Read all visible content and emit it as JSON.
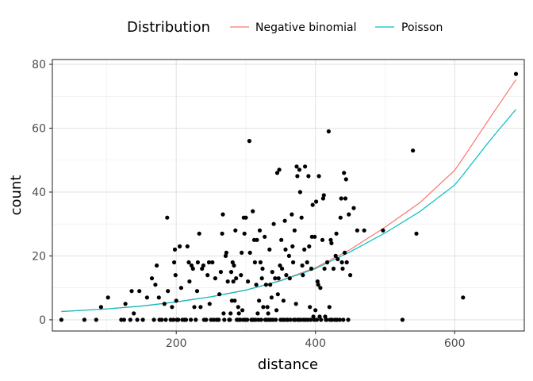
{
  "chart_data": {
    "type": "scatter",
    "xlabel": "distance",
    "ylabel": "count",
    "xlim": [
      22,
      700
    ],
    "ylim": [
      -3.5,
      81.5
    ],
    "x_ticks": [
      200,
      400,
      600
    ],
    "y_ticks": [
      0,
      20,
      40,
      60,
      80
    ],
    "grid": true,
    "legend": {
      "title": "Distribution",
      "position": "top",
      "entries": [
        {
          "name": "Negative binomial",
          "color": "#F8766D"
        },
        {
          "name": "Poisson",
          "color": "#00BFC4"
        }
      ]
    },
    "points": [
      [
        35,
        0
      ],
      [
        68,
        0
      ],
      [
        85,
        0
      ],
      [
        92,
        4
      ],
      [
        102,
        7
      ],
      [
        121,
        0
      ],
      [
        125,
        0
      ],
      [
        127,
        5
      ],
      [
        134,
        0
      ],
      [
        136,
        9
      ],
      [
        139,
        2
      ],
      [
        144,
        0
      ],
      [
        147,
        9
      ],
      [
        152,
        0
      ],
      [
        158,
        7
      ],
      [
        165,
        13
      ],
      [
        168,
        0
      ],
      [
        170,
        11
      ],
      [
        172,
        17
      ],
      [
        175,
        7
      ],
      [
        176,
        0
      ],
      [
        179,
        0
      ],
      [
        183,
        5
      ],
      [
        185,
        0
      ],
      [
        187,
        32
      ],
      [
        188,
        9
      ],
      [
        192,
        0
      ],
      [
        194,
        4
      ],
      [
        196,
        0
      ],
      [
        197,
        18
      ],
      [
        198,
        22
      ],
      [
        199,
        14
      ],
      [
        200,
        6
      ],
      [
        201,
        0
      ],
      [
        203,
        0
      ],
      [
        205,
        23
      ],
      [
        207,
        10
      ],
      [
        209,
        0
      ],
      [
        212,
        0
      ],
      [
        214,
        0
      ],
      [
        216,
        23
      ],
      [
        218,
        18
      ],
      [
        219,
        12
      ],
      [
        221,
        0
      ],
      [
        222,
        17
      ],
      [
        224,
        16
      ],
      [
        226,
        4
      ],
      [
        228,
        0
      ],
      [
        230,
        9
      ],
      [
        231,
        18
      ],
      [
        233,
        27
      ],
      [
        235,
        4
      ],
      [
        237,
        16
      ],
      [
        239,
        17
      ],
      [
        240,
        0
      ],
      [
        243,
        0
      ],
      [
        245,
        14
      ],
      [
        247,
        18
      ],
      [
        248,
        5
      ],
      [
        250,
        0
      ],
      [
        252,
        18
      ],
      [
        254,
        0
      ],
      [
        256,
        13
      ],
      [
        258,
        0
      ],
      [
        261,
        0
      ],
      [
        262,
        8
      ],
      [
        264,
        15
      ],
      [
        266,
        27
      ],
      [
        267,
        33
      ],
      [
        268,
        2
      ],
      [
        269,
        0
      ],
      [
        271,
        20
      ],
      [
        272,
        21
      ],
      [
        274,
        12
      ],
      [
        276,
        0
      ],
      [
        277,
        0
      ],
      [
        278,
        2
      ],
      [
        279,
        15
      ],
      [
        280,
        6
      ],
      [
        281,
        18
      ],
      [
        282,
        12
      ],
      [
        283,
        17
      ],
      [
        284,
        6
      ],
      [
        285,
        28
      ],
      [
        286,
        13
      ],
      [
        287,
        0
      ],
      [
        288,
        0
      ],
      [
        289,
        4
      ],
      [
        290,
        2
      ],
      [
        291,
        0
      ],
      [
        292,
        0
      ],
      [
        293,
        14
      ],
      [
        294,
        21
      ],
      [
        295,
        3
      ],
      [
        296,
        0
      ],
      [
        297,
        32
      ],
      [
        298,
        27
      ],
      [
        299,
        0
      ],
      [
        300,
        32
      ],
      [
        302,
        0
      ],
      [
        303,
        12
      ],
      [
        305,
        56
      ],
      [
        306,
        21
      ],
      [
        308,
        0
      ],
      [
        309,
        0
      ],
      [
        310,
        34
      ],
      [
        311,
        0
      ],
      [
        312,
        25
      ],
      [
        313,
        18
      ],
      [
        314,
        0
      ],
      [
        315,
        11
      ],
      [
        316,
        25
      ],
      [
        317,
        2
      ],
      [
        318,
        0
      ],
      [
        319,
        6
      ],
      [
        320,
        28
      ],
      [
        321,
        18
      ],
      [
        322,
        0
      ],
      [
        323,
        13
      ],
      [
        324,
        16
      ],
      [
        325,
        4
      ],
      [
        327,
        26
      ],
      [
        328,
        0
      ],
      [
        329,
        11
      ],
      [
        330,
        0
      ],
      [
        331,
        4
      ],
      [
        332,
        2
      ],
      [
        333,
        0
      ],
      [
        334,
        22
      ],
      [
        335,
        11
      ],
      [
        336,
        0
      ],
      [
        337,
        7
      ],
      [
        338,
        15
      ],
      [
        339,
        0
      ],
      [
        340,
        30
      ],
      [
        342,
        13
      ],
      [
        343,
        0
      ],
      [
        344,
        3
      ],
      [
        345,
        46
      ],
      [
        346,
        8
      ],
      [
        347,
        13
      ],
      [
        348,
        47
      ],
      [
        349,
        17
      ],
      [
        350,
        0
      ],
      [
        351,
        25
      ],
      [
        352,
        16
      ],
      [
        353,
        0
      ],
      [
        354,
        6
      ],
      [
        355,
        0
      ],
      [
        356,
        31
      ],
      [
        357,
        22
      ],
      [
        358,
        14
      ],
      [
        359,
        0
      ],
      [
        360,
        0
      ],
      [
        362,
        20
      ],
      [
        363,
        13
      ],
      [
        364,
        0
      ],
      [
        366,
        33
      ],
      [
        367,
        23
      ],
      [
        368,
        18
      ],
      [
        369,
        0
      ],
      [
        370,
        28
      ],
      [
        371,
        0
      ],
      [
        372,
        5
      ],
      [
        373,
        48
      ],
      [
        374,
        45
      ],
      [
        375,
        0
      ],
      [
        376,
        0
      ],
      [
        377,
        47
      ],
      [
        378,
        40
      ],
      [
        379,
        0
      ],
      [
        380,
        32
      ],
      [
        381,
        17
      ],
      [
        382,
        14
      ],
      [
        383,
        0
      ],
      [
        384,
        22
      ],
      [
        385,
        48
      ],
      [
        386,
        0
      ],
      [
        388,
        18
      ],
      [
        389,
        0
      ],
      [
        390,
        45
      ],
      [
        391,
        23
      ],
      [
        392,
        4
      ],
      [
        393,
        0
      ],
      [
        394,
        16
      ],
      [
        395,
        26
      ],
      [
        396,
        36
      ],
      [
        397,
        1
      ],
      [
        398,
        0
      ],
      [
        399,
        26
      ],
      [
        400,
        3
      ],
      [
        401,
        37
      ],
      [
        402,
        0
      ],
      [
        403,
        12
      ],
      [
        404,
        11
      ],
      [
        405,
        45
      ],
      [
        406,
        1
      ],
      [
        407,
        10
      ],
      [
        408,
        0
      ],
      [
        410,
        25
      ],
      [
        411,
        38
      ],
      [
        412,
        39
      ],
      [
        413,
        16
      ],
      [
        414,
        1
      ],
      [
        415,
        0
      ],
      [
        416,
        0
      ],
      [
        417,
        18
      ],
      [
        419,
        59
      ],
      [
        420,
        4
      ],
      [
        421,
        0
      ],
      [
        422,
        25
      ],
      [
        423,
        24
      ],
      [
        424,
        0
      ],
      [
        426,
        16
      ],
      [
        428,
        0
      ],
      [
        429,
        20
      ],
      [
        430,
        27
      ],
      [
        431,
        0
      ],
      [
        432,
        19
      ],
      [
        435,
        0
      ],
      [
        436,
        32
      ],
      [
        437,
        38
      ],
      [
        438,
        18
      ],
      [
        439,
        16
      ],
      [
        440,
        0
      ],
      [
        441,
        46
      ],
      [
        442,
        21
      ],
      [
        443,
        38
      ],
      [
        444,
        44
      ],
      [
        445,
        18
      ],
      [
        447,
        0
      ],
      [
        448,
        33
      ],
      [
        450,
        14
      ],
      [
        455,
        35
      ],
      [
        460,
        28
      ],
      [
        470,
        28
      ],
      [
        497,
        28
      ],
      [
        525,
        0
      ],
      [
        540,
        53
      ],
      [
        545,
        27
      ],
      [
        612,
        7
      ],
      [
        688,
        77
      ]
    ],
    "series": [
      {
        "name": "Negative binomial",
        "color": "#F8766D",
        "x": [
          35,
          100,
          150,
          200,
          250,
          300,
          350,
          400,
          450,
          500,
          550,
          600,
          612,
          650,
          688
        ],
        "y": [
          2.6,
          3.4,
          4.3,
          5.6,
          7.2,
          9.3,
          12.3,
          16.3,
          22.0,
          29.0,
          36.7,
          46.8,
          50.6,
          63.0,
          75.2
        ]
      },
      {
        "name": "Poisson",
        "color": "#00BFC4",
        "x": [
          35,
          100,
          150,
          200,
          250,
          300,
          350,
          400,
          450,
          500,
          550,
          600,
          612,
          650,
          688
        ],
        "y": [
          2.6,
          3.4,
          4.3,
          5.6,
          7.2,
          9.3,
          12.2,
          16.0,
          21.3,
          27.2,
          33.9,
          42.2,
          45.4,
          56.0,
          65.9
        ]
      }
    ]
  }
}
